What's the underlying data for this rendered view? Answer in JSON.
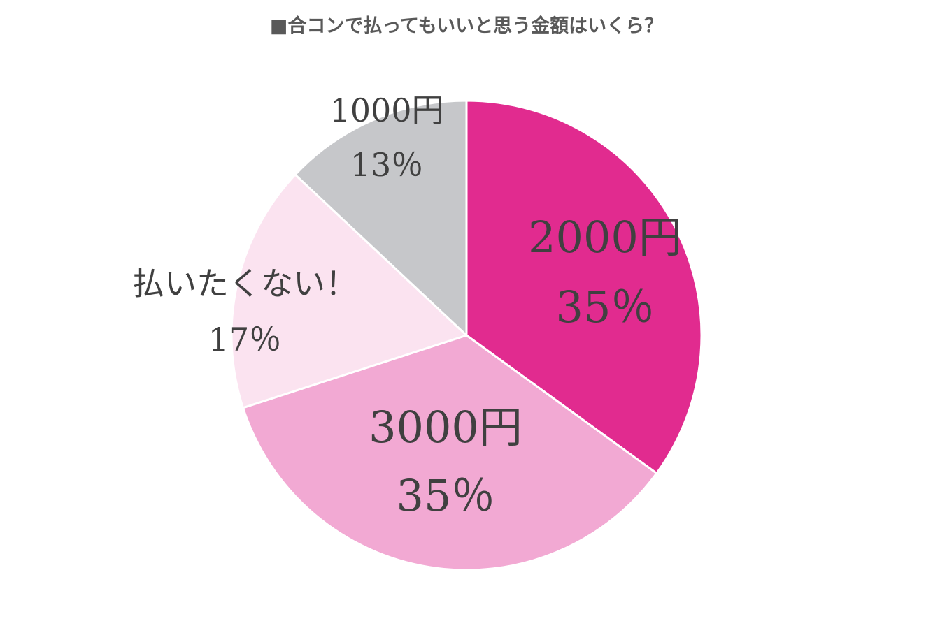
{
  "chart_data": {
    "type": "pie",
    "title": "■合コンで払ってもいいと思う金額はいくら？",
    "categories": [
      "2000円",
      "3000円",
      "払いたくない！",
      "1000円"
    ],
    "values": [
      35,
      35,
      17,
      13
    ],
    "value_labels": [
      "35％",
      "35％",
      "17％",
      "13％"
    ],
    "colors": [
      "#e12b8f",
      "#f2a9d3",
      "#fbe3f0",
      "#c6c7ca"
    ]
  }
}
